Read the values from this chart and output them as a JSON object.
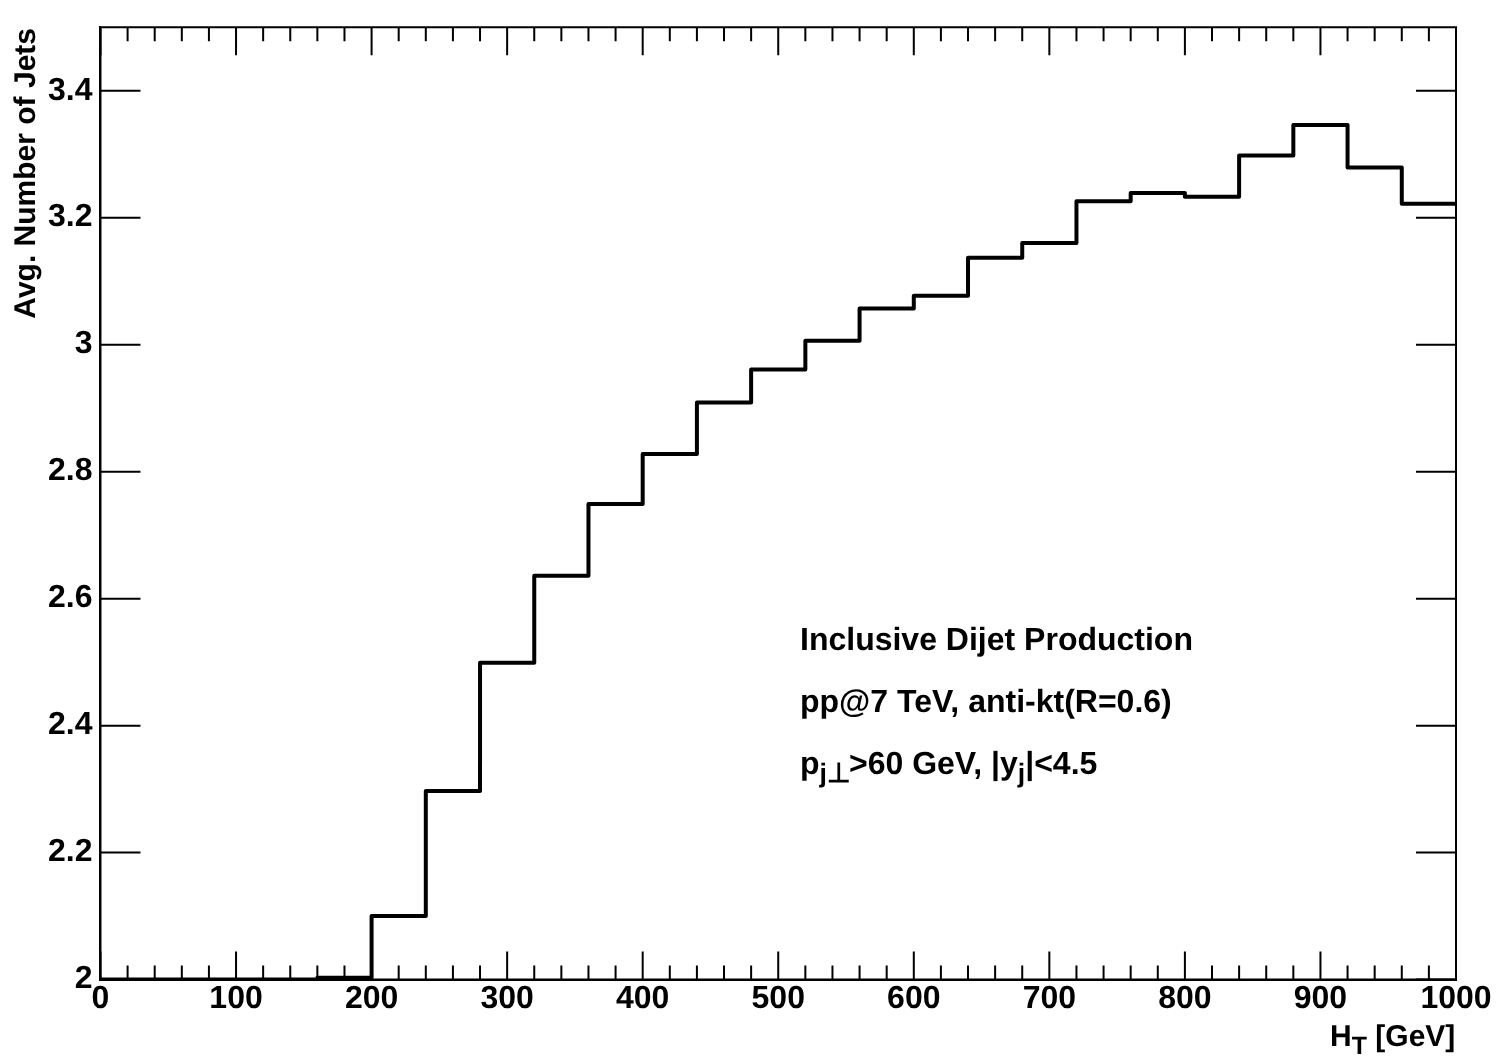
{
  "chart_data": {
    "type": "histogram",
    "ylabel": "Avg. Number of Jets",
    "xlabel": "H$_{T}$  [GeV]",
    "bins": [
      0,
      40,
      80,
      120,
      160,
      200,
      240,
      280,
      320,
      360,
      400,
      440,
      480,
      520,
      560,
      600,
      640,
      680,
      720,
      760,
      800,
      840,
      880,
      920,
      960,
      1000
    ],
    "values": [
      2.0,
      2.0,
      2.0,
      2.0,
      2.003,
      2.1,
      2.297,
      2.499,
      2.636,
      2.749,
      2.828,
      2.909,
      2.961,
      3.006,
      3.057,
      3.077,
      3.137,
      3.16,
      3.226,
      3.239,
      3.233,
      3.298,
      3.346,
      3.279,
      3.222
    ],
    "color": "#000000",
    "xlim": [
      0,
      1000
    ],
    "ylim": [
      2,
      3.5
    ],
    "xticks": [
      0,
      {
        "value": 20,
        "label": null
      },
      {
        "value": 40,
        "label": null
      },
      {
        "value": 60,
        "label": null
      },
      {
        "value": 80,
        "label": null
      },
      100,
      {
        "value": 120,
        "label": null
      },
      {
        "value": 140,
        "label": null
      },
      {
        "value": 160,
        "label": null
      },
      {
        "value": 180,
        "label": null
      },
      200,
      {
        "value": 220,
        "label": null
      },
      {
        "value": 240,
        "label": null
      },
      {
        "value": 260,
        "label": null
      },
      {
        "value": 280,
        "label": null
      },
      300,
      {
        "value": 320,
        "label": null
      },
      {
        "value": 340,
        "label": null
      },
      {
        "value": 360,
        "label": null
      },
      {
        "value": 380,
        "label": null
      },
      400,
      {
        "value": 420,
        "label": null
      },
      {
        "value": 440,
        "label": null
      },
      {
        "value": 460,
        "label": null
      },
      {
        "value": 480,
        "label": null
      },
      500,
      {
        "value": 520,
        "label": null
      },
      {
        "value": 540,
        "label": null
      },
      {
        "value": 560,
        "label": null
      },
      {
        "value": 580,
        "label": null
      },
      600,
      {
        "value": 620,
        "label": null
      },
      {
        "value": 640,
        "label": null
      },
      {
        "value": 660,
        "label": null
      },
      {
        "value": 680,
        "label": null
      },
      700,
      {
        "value": 720,
        "label": null
      },
      {
        "value": 740,
        "label": null
      },
      {
        "value": 760,
        "label": null
      },
      {
        "value": 780,
        "label": null
      },
      800,
      {
        "value": 820,
        "label": null
      },
      {
        "value": 840,
        "label": null
      },
      {
        "value": 860,
        "label": null
      },
      {
        "value": 880,
        "label": null
      },
      900,
      {
        "value": 920,
        "label": null
      },
      {
        "value": 940,
        "label": null
      },
      {
        "value": 960,
        "label": null
      },
      {
        "value": 980,
        "label": null
      },
      1000
    ],
    "yticks": [
      2,
      2.2,
      2.4,
      2.6,
      2.8,
      3,
      3.2,
      3.4
    ],
    "grid": false,
    "legend": false,
    "annotations": [
      "Inclusive Dijet Production",
      "pp@7 TeV, anti-kt(R=0.6)",
      "p$_{j⊥}$>60 GeV, |y$_{j}$|<4.5"
    ]
  }
}
